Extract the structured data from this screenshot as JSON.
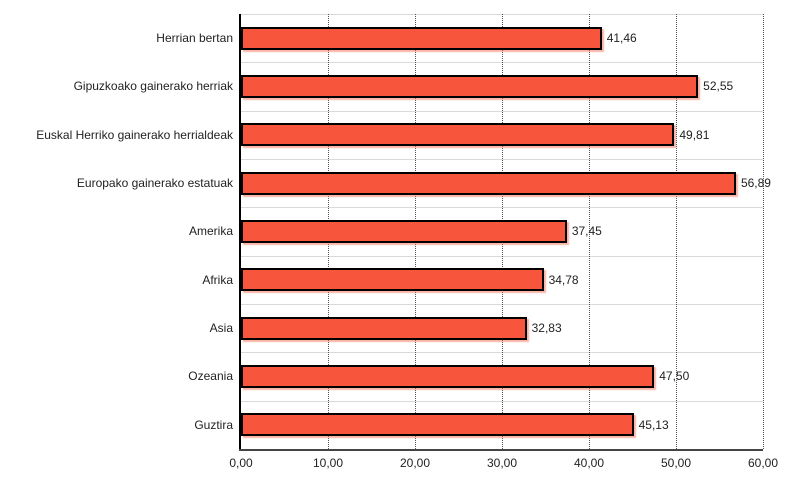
{
  "chart_data": {
    "type": "bar",
    "orientation": "horizontal",
    "title": "",
    "xlabel": "",
    "ylabel": "",
    "categories": [
      "Herrian bertan",
      "Gipuzkoako gainerako herriak",
      "Euskal Herriko gainerako herrialdeak",
      "Europako gainerako estatuak",
      "Amerika",
      "Afrika",
      "Asia",
      "Ozeania",
      "Guztira"
    ],
    "values": [
      41.46,
      52.55,
      49.81,
      56.89,
      37.45,
      34.78,
      32.83,
      47.5,
      45.13
    ],
    "value_labels": [
      "41,46",
      "52,55",
      "49,81",
      "56,89",
      "37,45",
      "34,78",
      "32,83",
      "47,50",
      "45,13"
    ],
    "x_ticks": [
      0,
      10,
      20,
      30,
      40,
      50,
      60
    ],
    "x_tick_labels": [
      "0,00",
      "10,00",
      "20,00",
      "30,00",
      "40,00",
      "50,00",
      "60,00"
    ],
    "xlim": [
      0,
      60
    ],
    "grid": "vertical-dotted",
    "legend": "none",
    "colors": {
      "bar_fill": "#F8563C",
      "bar_border": "#000000",
      "bar_shadow": "rgba(244,106,76,0.5)",
      "gridline": "#555555",
      "band_separator": "#D9D9D9",
      "x_axis_line": "#444444",
      "y_axis_line": "#000000",
      "text": "#222222",
      "background": "#FFFFFF"
    }
  }
}
